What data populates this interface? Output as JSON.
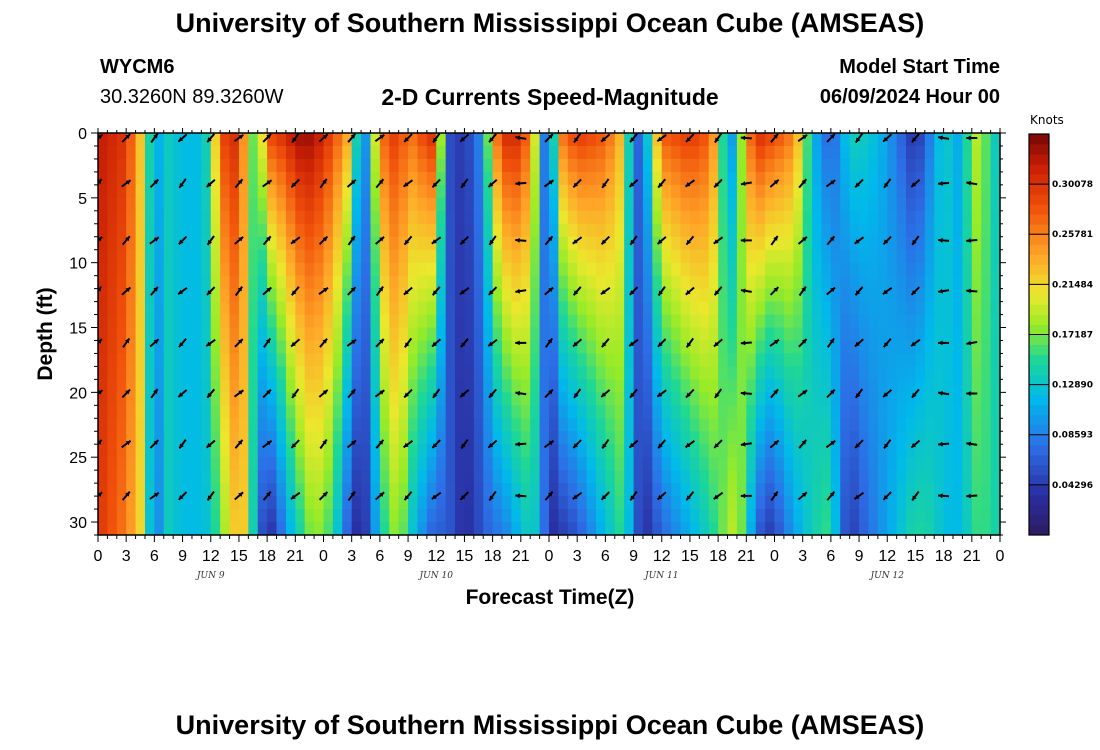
{
  "header": {
    "title": "University of Southern Mississippi Ocean Cube (AMSEAS)",
    "station_id": "WYCM6",
    "coords": "30.3260N  89.3260W",
    "subtitle": "2-D Currents Speed-Magnitude",
    "start_label": "Model Start Time",
    "start_value": "06/09/2024 Hour 00"
  },
  "footer": {
    "title": "University of Southern Mississippi Ocean Cube (AMSEAS)"
  },
  "chart_data": {
    "type": "heatmap",
    "title": "2-D Currents Speed-Magnitude",
    "xlabel": "Forecast Time(Z)",
    "ylabel": "Depth (ft)",
    "x_range_hours": [
      0,
      96
    ],
    "y_range_ft": [
      0,
      31
    ],
    "y_inverted": true,
    "x_tick_labels": [
      "0",
      "3",
      "6",
      "9",
      "12",
      "15",
      "18",
      "21",
      "0",
      "3",
      "6",
      "9",
      "12",
      "15",
      "18",
      "21",
      "0",
      "3",
      "6",
      "9",
      "12",
      "15",
      "18",
      "21",
      "0",
      "3",
      "6",
      "9",
      "12",
      "15",
      "18",
      "21",
      "0"
    ],
    "y_tick_values": [
      0,
      5,
      10,
      15,
      20,
      25,
      30
    ],
    "y_tick_labels": [
      "0",
      "5",
      "10",
      "15",
      "20",
      "25",
      "30"
    ],
    "date_labels": [
      {
        "text": "JUN 9",
        "hour": 12
      },
      {
        "text": "JUN 10",
        "hour": 36
      },
      {
        "text": "JUN 11",
        "hour": 60
      },
      {
        "text": "JUN 12",
        "hour": 84
      }
    ],
    "colorbar": {
      "unit": "Knots",
      "min": 0.0,
      "max": 0.3437,
      "ticks": [
        0.30078,
        0.25781,
        0.21484,
        0.17187,
        0.1289,
        0.08593,
        0.04296
      ],
      "tick_labels": [
        "0.30078",
        "0.25781",
        "0.21484",
        "0.17187",
        "0.12890",
        "0.08593",
        "0.04296"
      ]
    },
    "speed_profile": {
      "hours": [
        0,
        3,
        5,
        6,
        7,
        9,
        11,
        12,
        13,
        14,
        15,
        16,
        17,
        18,
        19,
        20,
        21,
        22,
        23,
        24,
        25,
        26,
        27,
        28,
        29,
        30,
        31,
        32,
        33,
        35,
        36,
        37,
        39,
        41,
        42,
        43,
        44,
        45,
        46,
        47,
        48,
        49,
        51,
        54,
        56,
        57,
        58,
        60,
        63,
        65,
        66,
        67,
        68,
        69,
        70,
        71,
        72,
        74,
        75,
        76,
        78,
        79,
        80,
        81,
        83,
        85,
        87,
        89,
        90,
        92,
        93,
        94,
        96
      ],
      "surface": [
        0.32,
        0.3,
        0.2,
        0.09,
        0.14,
        0.12,
        0.12,
        0.16,
        0.28,
        0.31,
        0.3,
        0.2,
        0.14,
        0.29,
        0.3,
        0.31,
        0.33,
        0.34,
        0.33,
        0.31,
        0.29,
        0.26,
        0.23,
        0.06,
        0.14,
        0.26,
        0.29,
        0.3,
        0.26,
        0.3,
        0.31,
        0.06,
        0.04,
        0.1,
        0.24,
        0.3,
        0.32,
        0.3,
        0.26,
        0.14,
        0.03,
        0.26,
        0.3,
        0.28,
        0.22,
        0.06,
        0.08,
        0.28,
        0.3,
        0.28,
        0.22,
        0.08,
        0.12,
        0.24,
        0.31,
        0.3,
        0.29,
        0.26,
        0.2,
        0.12,
        0.06,
        0.1,
        0.14,
        0.14,
        0.12,
        0.08,
        0.03,
        0.1,
        0.14,
        0.1,
        0.2,
        0.18,
        0.12
      ],
      "deep": [
        0.3,
        0.26,
        0.2,
        0.05,
        0.14,
        0.12,
        0.12,
        0.13,
        0.17,
        0.2,
        0.24,
        0.2,
        0.08,
        0.03,
        0.05,
        0.1,
        0.13,
        0.16,
        0.18,
        0.17,
        0.15,
        0.1,
        0.04,
        0.03,
        0.06,
        0.14,
        0.16,
        0.19,
        0.14,
        0.08,
        0.06,
        0.07,
        0.03,
        0.06,
        0.08,
        0.08,
        0.1,
        0.12,
        0.14,
        0.12,
        0.03,
        0.04,
        0.06,
        0.12,
        0.16,
        0.08,
        0.03,
        0.07,
        0.11,
        0.14,
        0.16,
        0.18,
        0.2,
        0.14,
        0.08,
        0.04,
        0.05,
        0.1,
        0.12,
        0.14,
        0.16,
        0.08,
        0.04,
        0.06,
        0.09,
        0.12,
        0.15,
        0.14,
        0.12,
        0.12,
        0.15,
        0.16,
        0.14
      ]
    },
    "vector_depths_ft": [
      0,
      3.5,
      7.9,
      11.8,
      15.8,
      19.7,
      23.6,
      27.6
    ],
    "vector_hours": [
      0,
      3,
      6,
      9,
      12,
      15,
      18,
      21,
      24,
      27,
      30,
      33,
      36,
      39,
      42,
      45,
      48,
      51,
      54,
      57,
      60,
      63,
      66,
      69,
      72,
      75,
      78,
      81,
      84,
      87,
      90,
      93
    ],
    "vector_angles_deg": [
      45,
      45,
      45,
      225,
      225,
      45,
      45,
      225,
      45,
      45,
      45,
      225,
      225,
      225,
      225,
      180,
      45,
      225,
      225,
      225,
      225,
      225,
      225,
      180,
      45,
      45,
      45,
      225,
      225,
      225,
      180,
      180
    ]
  }
}
